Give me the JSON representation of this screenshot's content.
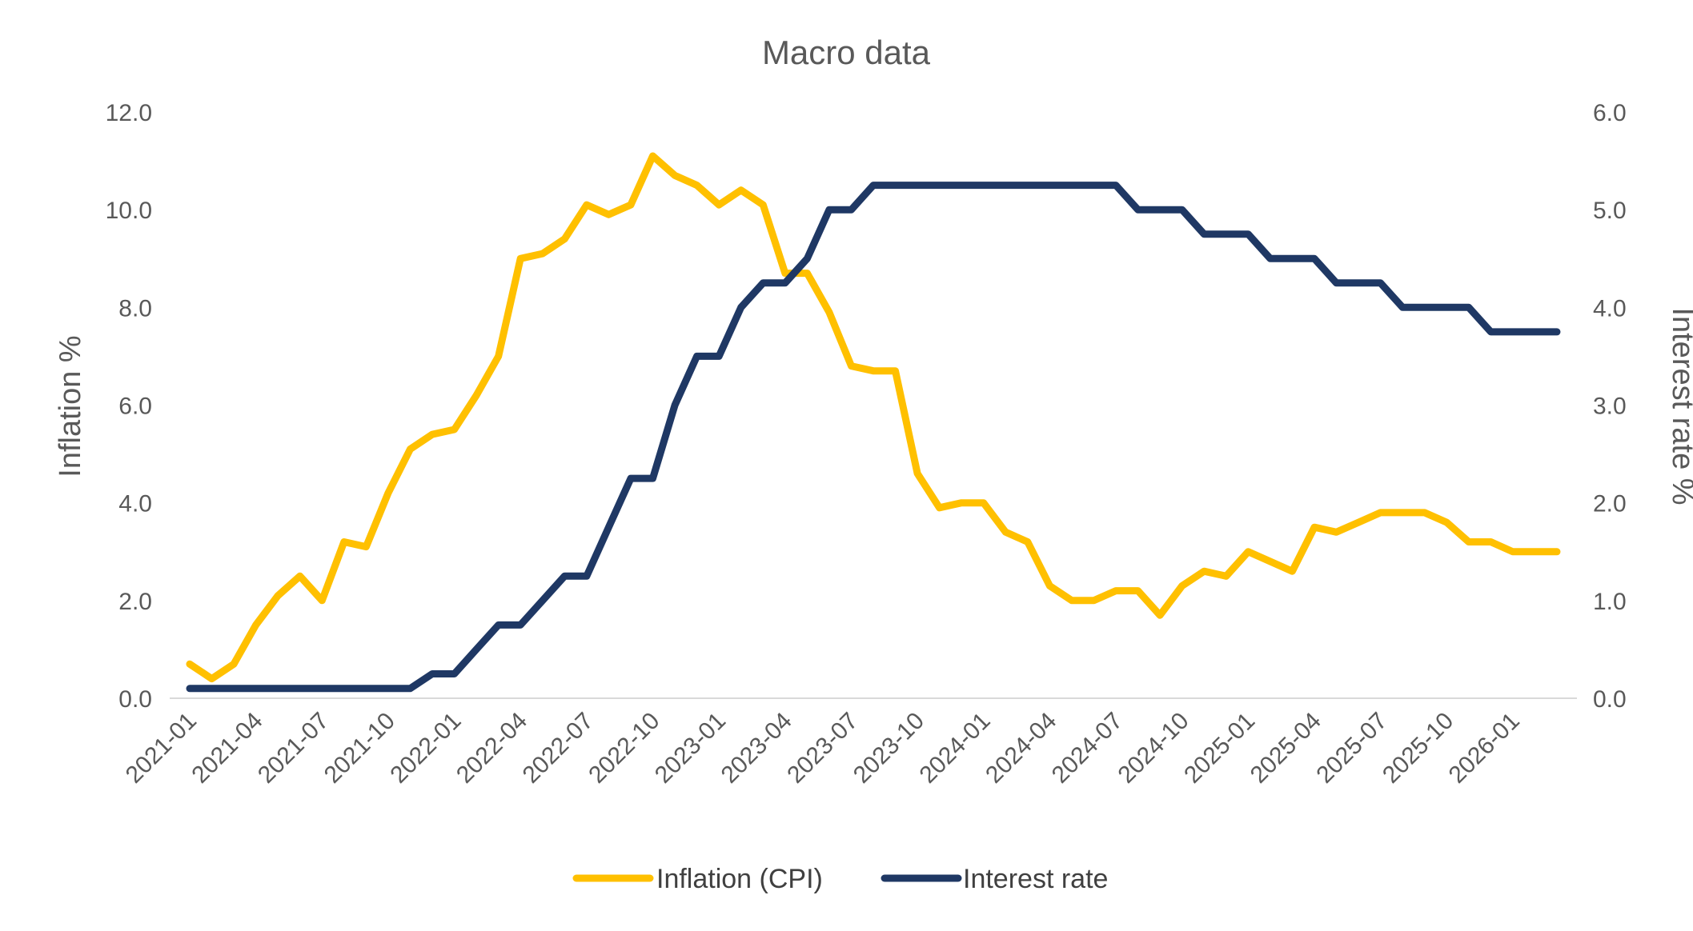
{
  "chart_data": {
    "type": "line",
    "title": "Macro data",
    "xlabel": "",
    "ylabel_left": "Inflation %",
    "ylabel_right": "Interest rate %",
    "y_left_range": [
      0,
      12
    ],
    "y_right_range": [
      0,
      6
    ],
    "y_left_ticks": [
      "0.0",
      "2.0",
      "4.0",
      "6.0",
      "8.0",
      "10.0",
      "12.0"
    ],
    "y_right_ticks": [
      "0.0",
      "1.0",
      "2.0",
      "3.0",
      "4.0",
      "5.0",
      "6.0"
    ],
    "x": [
      "2021-01",
      "2021-02",
      "2021-03",
      "2021-04",
      "2021-05",
      "2021-06",
      "2021-07",
      "2021-08",
      "2021-09",
      "2021-10",
      "2021-11",
      "2021-12",
      "2022-01",
      "2022-02",
      "2022-03",
      "2022-04",
      "2022-05",
      "2022-06",
      "2022-07",
      "2022-08",
      "2022-09",
      "2022-10",
      "2022-11",
      "2022-12",
      "2023-01",
      "2023-02",
      "2023-03",
      "2023-04",
      "2023-05",
      "2023-06",
      "2023-07",
      "2023-08",
      "2023-09",
      "2023-10",
      "2023-11",
      "2023-12",
      "2024-01",
      "2024-02",
      "2024-03",
      "2024-04",
      "2024-05",
      "2024-06",
      "2024-07",
      "2024-08",
      "2024-09",
      "2024-10",
      "2024-11",
      "2024-12",
      "2025-01",
      "2025-02",
      "2025-03",
      "2025-04",
      "2025-05",
      "2025-06",
      "2025-07",
      "2025-08",
      "2025-09",
      "2025-10",
      "2025-11",
      "2025-12",
      "2026-01",
      "2026-02",
      "2026-03"
    ],
    "x_tick_labels": [
      "2021-01",
      "2021-04",
      "2021-07",
      "2021-10",
      "2022-01",
      "2022-04",
      "2022-07",
      "2022-10",
      "2023-01",
      "2023-04",
      "2023-07",
      "2023-10",
      "2024-01",
      "2024-04",
      "2024-07",
      "2024-10",
      "2025-01",
      "2025-04",
      "2025-07",
      "2025-10",
      "2026-01"
    ],
    "grid": false,
    "legend_position": "bottom",
    "series": [
      {
        "name": "Inflation (CPI)",
        "axis": "left",
        "color": "#FFC000",
        "values": [
          0.7,
          0.4,
          0.7,
          1.5,
          2.1,
          2.5,
          2.0,
          3.2,
          3.1,
          4.2,
          5.1,
          5.4,
          5.5,
          6.2,
          7.0,
          9.0,
          9.1,
          9.4,
          10.1,
          9.9,
          10.1,
          11.1,
          10.7,
          10.5,
          10.1,
          10.4,
          10.1,
          8.7,
          8.7,
          7.9,
          6.8,
          6.7,
          6.7,
          4.6,
          3.9,
          4.0,
          4.0,
          3.4,
          3.2,
          2.3,
          2.0,
          2.0,
          2.2,
          2.2,
          1.7,
          2.3,
          2.6,
          2.5,
          3.0,
          2.8,
          2.6,
          3.5,
          3.4,
          3.6,
          3.8,
          3.8,
          3.8,
          3.6,
          3.2,
          3.2,
          3.0,
          3.0,
          3.0
        ]
      },
      {
        "name": "Interest rate",
        "axis": "right",
        "color": "#1F3864",
        "values": [
          0.1,
          0.1,
          0.1,
          0.1,
          0.1,
          0.1,
          0.1,
          0.1,
          0.1,
          0.1,
          0.1,
          0.25,
          0.25,
          0.5,
          0.75,
          0.75,
          1.0,
          1.25,
          1.25,
          1.75,
          2.25,
          2.25,
          3.0,
          3.5,
          3.5,
          4.0,
          4.25,
          4.25,
          4.5,
          5.0,
          5.0,
          5.25,
          5.25,
          5.25,
          5.25,
          5.25,
          5.25,
          5.25,
          5.25,
          5.25,
          5.25,
          5.25,
          5.25,
          5.0,
          5.0,
          5.0,
          4.75,
          4.75,
          4.75,
          4.5,
          4.5,
          4.5,
          4.25,
          4.25,
          4.25,
          4.0,
          4.0,
          4.0,
          4.0,
          3.75,
          3.75,
          3.75,
          3.75
        ]
      }
    ]
  }
}
